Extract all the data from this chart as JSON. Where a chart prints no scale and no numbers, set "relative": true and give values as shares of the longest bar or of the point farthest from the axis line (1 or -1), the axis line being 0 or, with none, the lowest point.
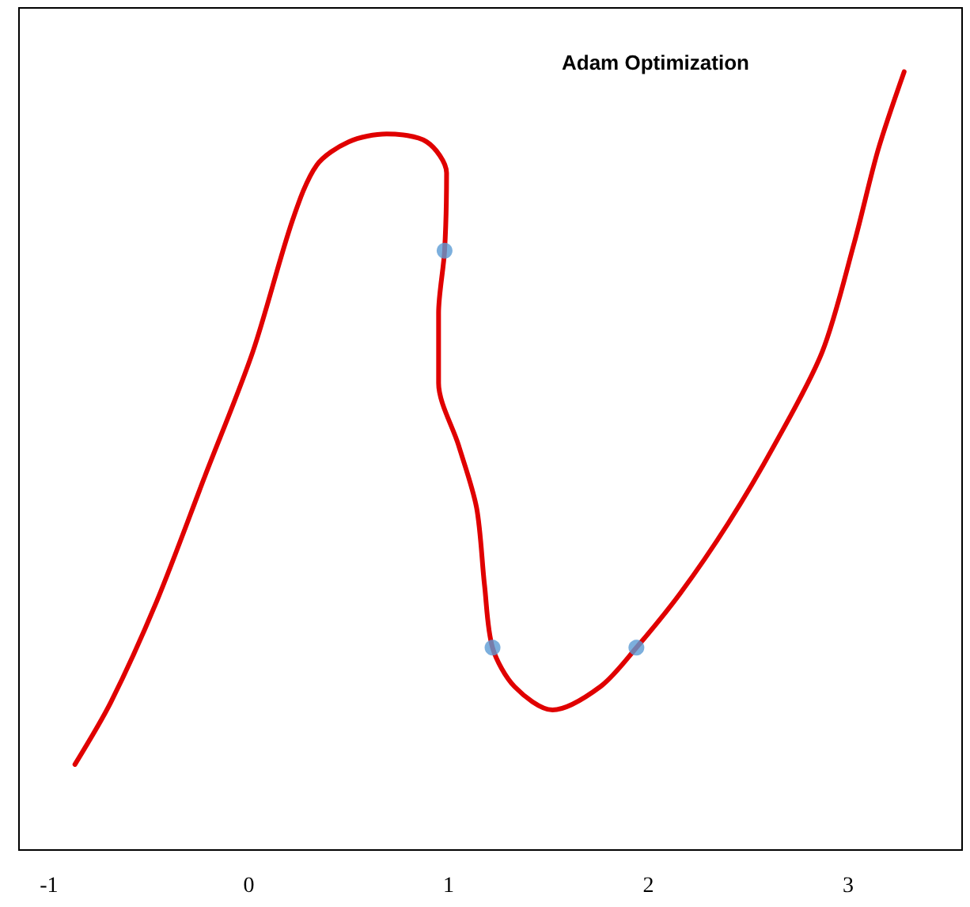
{
  "chart_data": {
    "type": "line",
    "title": "Adam Optimization",
    "relative": true,
    "tick_labels": "x",
    "grid": false,
    "xlim": [
      -1.15,
      3.57
    ],
    "xticks": [
      -1,
      0,
      1,
      2,
      3
    ],
    "series": [
      {
        "color": "#e00000",
        "marker": "none",
        "line_style": "solid",
        "x": [
          -0.87,
          -0.69,
          -0.46,
          -0.22,
          0.02,
          0.22,
          0.34,
          0.5,
          0.69,
          0.89,
          0.99,
          0.98,
          0.95,
          0.95,
          1.05,
          1.14,
          1.18,
          1.22,
          1.33,
          1.52,
          1.76,
          1.94,
          2.16,
          2.4,
          2.63,
          2.87,
          3.03,
          3.15,
          3.28
        ],
        "values": [
          0.11,
          0.19,
          0.32,
          0.48,
          0.64,
          0.81,
          0.88,
          0.91,
          0.92,
          0.91,
          0.87,
          0.77,
          0.69,
          0.6,
          0.52,
          0.44,
          0.34,
          0.26,
          0.21,
          0.18,
          0.21,
          0.26,
          0.33,
          0.42,
          0.52,
          0.64,
          0.78,
          0.9,
          1.0
        ]
      },
      {
        "type": "scatter",
        "color": "#5b9bd5",
        "marker": "circle",
        "x": [
          0.98,
          1.22,
          1.94
        ],
        "values": [
          0.77,
          0.26,
          0.26
        ]
      }
    ]
  }
}
